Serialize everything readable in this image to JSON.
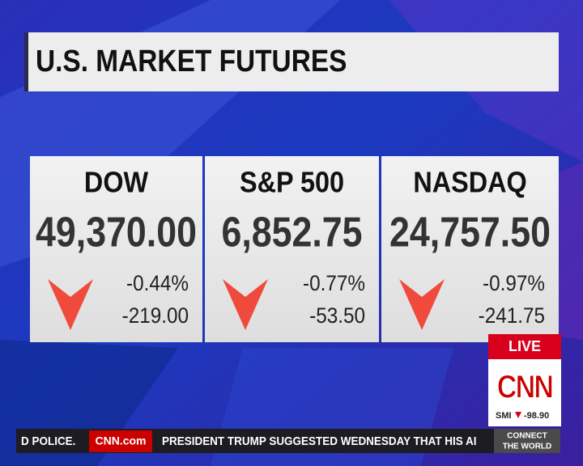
{
  "header": {
    "title": "U.S. MARKET FUTURES"
  },
  "markets": [
    {
      "name": "DOW",
      "value": "49,370.00",
      "change_pct": "-0.44%",
      "change_pts": "-219.00"
    },
    {
      "name": "S&P 500",
      "value": "6,852.75",
      "change_pct": "-0.77%",
      "change_pts": "-53.50"
    },
    {
      "name": "NASDAQ",
      "value": "24,757.50",
      "change_pct": "-0.97%",
      "change_pts": "-241.75"
    }
  ],
  "bug": {
    "live": "LIVE",
    "logo": "CNN",
    "index": "SMI",
    "index_value": "-98.90"
  },
  "ticker": {
    "previous": "D POLICE.",
    "brand": "CNN.com",
    "headline": "PRESIDENT TRUMP SUGGESTED WEDNESDAY THAT HIS AI",
    "connect_line1": "CONNECT",
    "connect_line2": "THE WORLD"
  }
}
